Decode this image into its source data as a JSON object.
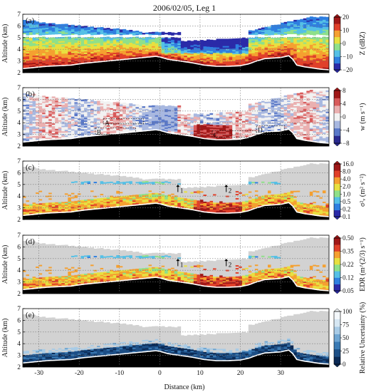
{
  "chart_data": {
    "type": "heatmap",
    "title": "2006/02/05, Leg 1",
    "xlabel": "Distance (km)",
    "ylabel": "Altitude (km)",
    "xlim": [
      -34,
      42
    ],
    "ylim": [
      2,
      7
    ],
    "x_ticks": [
      "-30",
      "-20",
      "-10",
      "0",
      "10",
      "20",
      "30"
    ],
    "y_ticks": [
      "2",
      "3",
      "4",
      "5",
      "6",
      "7"
    ],
    "grid": true,
    "terrain_profile": {
      "x": [
        -34,
        -31,
        -28,
        -25,
        -22,
        -19,
        -16,
        -13,
        -10,
        -7,
        -4,
        -1,
        0,
        2,
        5,
        8,
        11,
        14,
        17,
        20,
        22,
        24,
        26,
        28,
        30,
        32,
        33,
        34,
        36,
        38,
        40,
        42
      ],
      "y": [
        2.3,
        2.4,
        2.5,
        2.55,
        2.6,
        2.75,
        2.85,
        2.95,
        3.05,
        3.15,
        3.25,
        3.35,
        3.3,
        3.1,
        2.95,
        2.8,
        2.6,
        2.5,
        2.5,
        2.55,
        2.7,
        2.95,
        3.15,
        3.2,
        3.25,
        3.4,
        3.1,
        2.6,
        2.45,
        2.35,
        2.25,
        2.2
      ]
    },
    "panels": [
      {
        "label": "(a)",
        "variable": "Z (dBZ)",
        "colorbar_ticks": [
          "20",
          "10",
          "0",
          "−10",
          "−20"
        ],
        "colorbar_range": [
          -20,
          20
        ],
        "palette": [
          "#2a2aa8",
          "#2f7fe0",
          "#55c0e6",
          "#8fe08a",
          "#e8e040",
          "#f5a030",
          "#e0402a",
          "#a01818"
        ]
      },
      {
        "label": "(b)",
        "variable": "w (m s⁻¹)",
        "colorbar_ticks": [
          "8",
          "4",
          "0",
          "−4",
          "−8"
        ],
        "colorbar_range": [
          -8,
          8
        ],
        "palette": [
          "#2a2a90",
          "#5a78c8",
          "#a8b8e0",
          "#f2f2f2",
          "#eab0b0",
          "#d85a5a",
          "#a01818"
        ],
        "annotations": [
          "A",
          "B",
          "C",
          "D"
        ]
      },
      {
        "label": "(c)",
        "variable": "σ²ᵥ (m² s⁻²)",
        "colorbar_ticks": [
          "16.0",
          "8.0",
          "4.0",
          "2.0",
          "1.0",
          "0.5",
          "0.2",
          "0.1"
        ],
        "palette": [
          "#2a2aa8",
          "#2f7fe0",
          "#55c0e6",
          "#8fe08a",
          "#e8e040",
          "#f5a030",
          "#e0402a",
          "#a01818"
        ],
        "markers": [
          "1",
          "2"
        ]
      },
      {
        "label": "(d)",
        "variable": "EDR (m^(2/3) s⁻¹)",
        "colorbar_ticks": [
          "0.50",
          "0.35",
          "0.22",
          "0.12",
          "0.05"
        ],
        "palette": [
          "#2a2aa8",
          "#2f7fe0",
          "#55c0e6",
          "#8fe08a",
          "#e8e040",
          "#f5a030",
          "#e0402a",
          "#a01818"
        ],
        "markers": [
          "1",
          "2"
        ]
      },
      {
        "label": "(e)",
        "variable": "Relative Uncertainty (%)",
        "colorbar_ticks": [
          "100",
          "75",
          "50",
          "25",
          "0"
        ],
        "colorbar_range": [
          0,
          100
        ],
        "palette": [
          "#0b2a55",
          "#1d4f86",
          "#3a7ab4",
          "#6fa6d2",
          "#a8cbe6",
          "#d6e7f3",
          "#f4f8fb"
        ]
      }
    ]
  }
}
